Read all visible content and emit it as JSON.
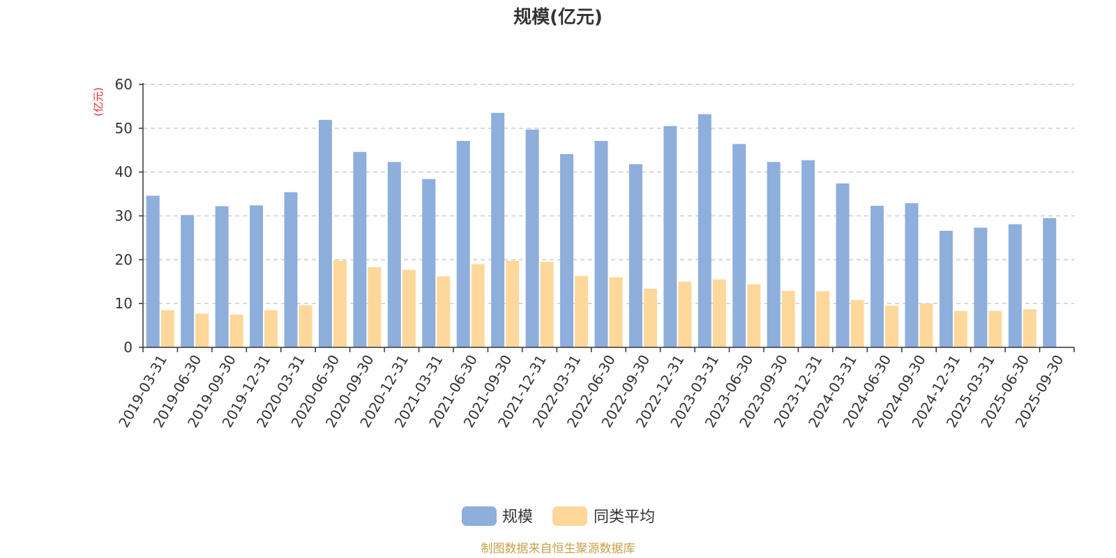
{
  "chart_data": {
    "type": "bar",
    "title": "规模(亿元)",
    "y_unit_label": "(亿元)",
    "ylim": [
      0,
      60
    ],
    "y_ticks": [
      0,
      10,
      20,
      30,
      40,
      50,
      60
    ],
    "grid": true,
    "legend_position": "bottom-center",
    "categories": [
      "2019-03-31",
      "2019-06-30",
      "2019-09-30",
      "2019-12-31",
      "2020-03-31",
      "2020-06-30",
      "2020-09-30",
      "2020-12-31",
      "2021-03-31",
      "2021-06-30",
      "2021-09-30",
      "2021-12-31",
      "2022-03-31",
      "2022-06-30",
      "2022-09-30",
      "2022-12-31",
      "2023-03-31",
      "2023-06-30",
      "2023-09-30",
      "2023-12-31",
      "2024-03-31",
      "2024-06-30",
      "2024-09-30",
      "2024-12-31",
      "2025-03-31",
      "2025-06-30",
      "2025-09-30"
    ],
    "series": [
      {
        "name": "规模",
        "color": "#8eaedc",
        "values": [
          34.6,
          30.2,
          32.2,
          32.4,
          35.4,
          51.9,
          44.6,
          42.3,
          38.4,
          47.1,
          53.5,
          49.7,
          44.1,
          47.1,
          41.8,
          50.5,
          53.2,
          46.4,
          42.3,
          42.7,
          37.4,
          32.3,
          32.9,
          26.6,
          27.3,
          28.1,
          29.5
        ]
      },
      {
        "name": "同类平均",
        "color": "#fdd89a",
        "values": [
          8.5,
          7.7,
          7.5,
          8.5,
          9.6,
          19.8,
          18.3,
          17.7,
          16.2,
          19.0,
          19.8,
          19.5,
          16.3,
          16.0,
          13.4,
          15.0,
          15.5,
          14.4,
          12.9,
          12.8,
          10.8,
          9.5,
          10.0,
          8.3,
          8.3,
          8.7,
          null
        ]
      }
    ],
    "source_note": "制图数据来自恒生聚源数据库",
    "colors": {
      "title": "#333333",
      "unit_label": "#e8262b",
      "source_note": "#c8a04a",
      "axis": "#333333",
      "grid": "#cccccc"
    }
  }
}
